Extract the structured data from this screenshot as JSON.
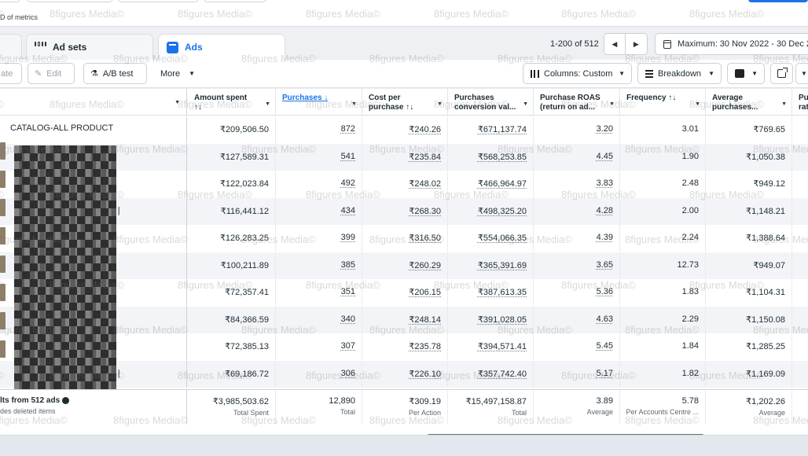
{
  "top": {
    "metrics_label": "D of metrics"
  },
  "tabs": [
    {
      "label": "Ad sets",
      "icon": "grid-icon"
    },
    {
      "label": "Ads",
      "icon": "ads-icon"
    }
  ],
  "pagination": {
    "range": "1-200 of 512",
    "date_range": "Maximum: 30 Nov 2022 - 30 Dec 2"
  },
  "toolbar": {
    "duplicate": "ate",
    "edit": "Edit",
    "ab_test": "A/B test",
    "more": "More",
    "columns": "Columns: Custom",
    "breakdown": "Breakdown"
  },
  "table": {
    "columns": [
      {
        "line1": "Amount spent",
        "line2": "↑↓"
      },
      {
        "line1": "Purchases ↓",
        "line2": ""
      },
      {
        "line1": "Cost per",
        "line2": "purchase ↑↓"
      },
      {
        "line1": "Purchases",
        "line2": "conversion val..."
      },
      {
        "line1": "Purchase ROAS",
        "line2": "(return on ad..."
      },
      {
        "line1": "Frequency ↑↓",
        "line2": ""
      },
      {
        "line1": "Average",
        "line2": "purchases..."
      },
      {
        "line1": "Pu",
        "line2": "rat"
      }
    ],
    "rows": [
      {
        "name": "CATALOG-ALL PRODUCT",
        "cells": [
          "₹209,506.50",
          "872",
          "₹240.26",
          "₹671,137.74",
          "3.20",
          "3.01",
          "₹769.65"
        ]
      },
      {
        "name": "",
        "cells": [
          "₹127,589.31",
          "541",
          "₹235.84",
          "₹568,253.85",
          "4.45",
          "1.90",
          "₹1,050.38"
        ]
      },
      {
        "name": "",
        "cells": [
          "₹122,023.84",
          "492",
          "₹248.02",
          "₹466,964.97",
          "3.83",
          "2.48",
          "₹949.12"
        ]
      },
      {
        "name": "rt |",
        "cells": [
          "₹116,441.12",
          "434",
          "₹268.30",
          "₹498,325.20",
          "4.28",
          "2.00",
          "₹1,148.21"
        ]
      },
      {
        "name": "",
        "cells": [
          "₹126,283.25",
          "399",
          "₹316.50",
          "₹554,066.35",
          "4.39",
          "2.24",
          "₹1,388.64"
        ]
      },
      {
        "name": "",
        "cells": [
          "₹100,211.89",
          "385",
          "₹260.29",
          "₹365,391.69",
          "3.65",
          "12.73",
          "₹949.07"
        ]
      },
      {
        "name": "",
        "cells": [
          "₹72,357.41",
          "351",
          "₹206.15",
          "₹387,613.35",
          "5.36",
          "1.83",
          "₹1,104.31"
        ]
      },
      {
        "name": "",
        "cells": [
          "₹84,366.59",
          "340",
          "₹248.14",
          "₹391,028.05",
          "4.63",
          "2.29",
          "₹1,150.08"
        ]
      },
      {
        "name": "",
        "cells": [
          "₹72,385.13",
          "307",
          "₹235.78",
          "₹394,571.41",
          "5.45",
          "1.84",
          "₹1,285.25"
        ]
      },
      {
        "name": "rt |",
        "cells": [
          "₹69,186.72",
          "306",
          "₹226.10",
          "₹357,742.40",
          "5.17",
          "1.82",
          "₹1,169.09"
        ]
      }
    ],
    "totals": {
      "label": "lts from 512 ads",
      "sublabel": "des deleted items",
      "cells": [
        {
          "value": "₹3,985,503.62",
          "sub": "Total Spent"
        },
        {
          "value": "12,890",
          "sub": "Total"
        },
        {
          "value": "₹309.19",
          "sub": "Per Action"
        },
        {
          "value": "₹15,497,158.87",
          "sub": "Total"
        },
        {
          "value": "3.89",
          "sub": "Average"
        },
        {
          "value": "5.78",
          "sub": "Per Accounts Centre ..."
        },
        {
          "value": "₹1,202.26",
          "sub": "Average"
        }
      ]
    }
  },
  "watermark": "8figures Media©",
  "colors": {
    "accent": "#1a73e8",
    "text": "#1c2b33",
    "row_alt": "#f2f4f7"
  }
}
